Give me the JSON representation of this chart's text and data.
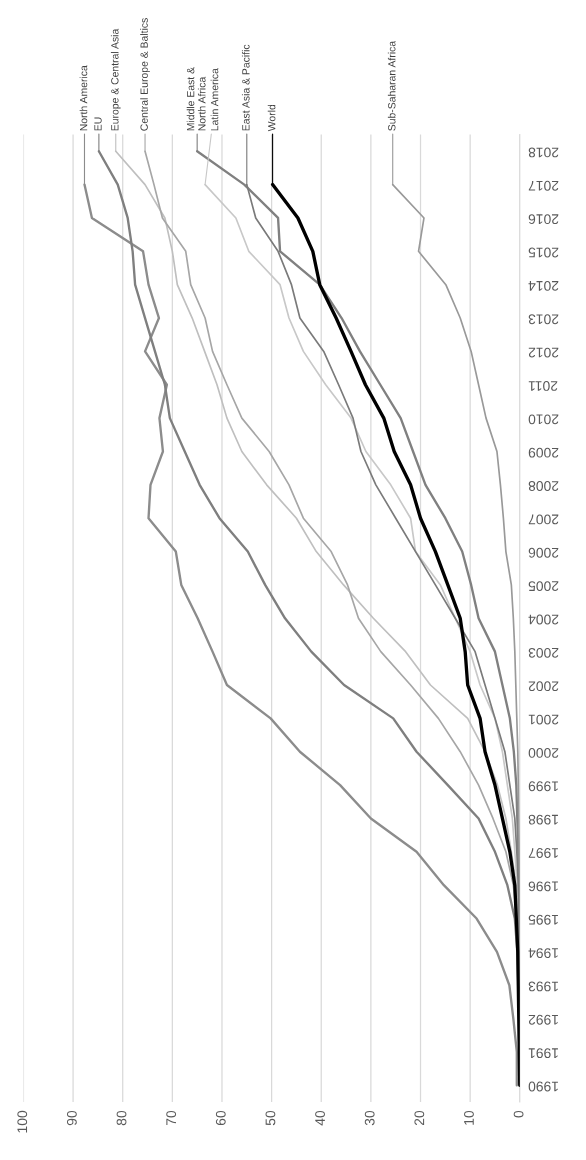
{
  "chart_data": {
    "type": "line",
    "xlim": [
      100,
      0
    ],
    "xticks": [
      0,
      10,
      20,
      30,
      40,
      50,
      60,
      70,
      80,
      90,
      100
    ],
    "ylim": [
      1989.5,
      2018.5
    ],
    "yticks": [
      1990,
      1991,
      1992,
      1993,
      1994,
      1995,
      1996,
      1997,
      1998,
      1999,
      2000,
      2001,
      2002,
      2003,
      2004,
      2005,
      2006,
      2007,
      2008,
      2009,
      2010,
      2011,
      2012,
      2013,
      2014,
      2015,
      2016,
      2017,
      2018
    ],
    "grid": "x",
    "series": [
      {
        "name": "North America",
        "color": "#8c8c8c",
        "x": [
          0.6,
          0.6,
          1.3,
          2.1,
          4.6,
          8.7,
          15.3,
          20.8,
          30,
          36.2,
          44.3,
          50.2,
          59,
          61.9,
          64.9,
          68.2,
          69.3,
          74.8,
          74.4,
          71.9,
          72.6,
          71.1,
          75.5,
          72.7,
          74.8,
          75.9,
          86.2,
          87.7
        ],
        "values": [
          1990,
          1991,
          1992,
          1993,
          1994,
          1995,
          1996,
          1997,
          1998,
          1999,
          2000,
          2001,
          2002,
          2003,
          2004,
          2005,
          2006,
          2007,
          2008,
          2009,
          2010,
          2011,
          2012,
          2013,
          2014,
          2015,
          2016,
          2017
        ]
      },
      {
        "name": "EU",
        "color": "#7f7f7f",
        "x": [
          0,
          0.1,
          0.2,
          0.3,
          0.5,
          1,
          2.5,
          5,
          8.3,
          14.5,
          20.8,
          25.5,
          35.4,
          42,
          47.3,
          51.3,
          54.8,
          60.5,
          64.5,
          67.5,
          70.5,
          71.5,
          73.5,
          75.5,
          77.5,
          78,
          79,
          81,
          84.8
        ],
        "values": [
          1990,
          1991,
          1992,
          1993,
          1994,
          1995,
          1996,
          1997,
          1998,
          1999,
          2000,
          2001,
          2002,
          2003,
          2004,
          2005,
          2006,
          2007,
          2008,
          2009,
          2010,
          2011,
          2012,
          2013,
          2014,
          2015,
          2016,
          2017,
          2018
        ]
      },
      {
        "name": "Europe & Central Asia",
        "color": "#bfbfbf",
        "x": [
          0,
          0,
          0.1,
          0.2,
          0.3,
          0.4,
          0.7,
          1.7,
          2.8,
          4.5,
          7,
          10.5,
          18,
          23,
          29.5,
          35.5,
          41,
          45,
          51,
          56,
          59,
          61,
          63.5,
          66,
          69,
          70,
          71.5,
          75.5,
          81.4
        ],
        "values": [
          1990,
          1991,
          1992,
          1993,
          1994,
          1995,
          1996,
          1997,
          1998,
          1999,
          2000,
          2001,
          2002,
          2003,
          2004,
          2005,
          2006,
          2007,
          2008,
          2009,
          2010,
          2011,
          2012,
          2013,
          2014,
          2015,
          2016,
          2017,
          2018
        ]
      },
      {
        "name": "Central Europe & Baltics",
        "color": "#a6a6a6",
        "x": [
          0,
          0,
          0.1,
          0.2,
          0.3,
          0.6,
          1.3,
          2.8,
          5.4,
          8.3,
          12,
          16.4,
          22,
          28,
          32.5,
          34.7,
          38,
          43.6,
          46.5,
          50.5,
          56,
          59,
          61.9,
          63.4,
          66.3,
          67.3,
          72,
          73.7,
          75.5
        ],
        "values": [
          1990,
          1991,
          1992,
          1993,
          1994,
          1995,
          1996,
          1997,
          1998,
          1999,
          2000,
          2001,
          2002,
          2003,
          2004,
          2005,
          2006,
          2007,
          2008,
          2009,
          2010,
          2011,
          2012,
          2013,
          2014,
          2015,
          2016,
          2017,
          2018
        ]
      },
      {
        "name": "Middle East &\nNorth Africa",
        "color": "#808080",
        "x": [
          0,
          0,
          0,
          0.1,
          0.1,
          0.2,
          0.2,
          0.3,
          0.5,
          0.7,
          1.2,
          2,
          3.5,
          5,
          8.3,
          9.8,
          11.6,
          15,
          19,
          21.5,
          24,
          28.1,
          32.2,
          35.9,
          40.3,
          48.3,
          48.7,
          55.5,
          65
        ],
        "values": [
          1990,
          1991,
          1992,
          1993,
          1994,
          1995,
          1996,
          1997,
          1998,
          1999,
          2000,
          2001,
          2002,
          2003,
          2004,
          2005,
          2006,
          2007,
          2008,
          2009,
          2010,
          2011,
          2012,
          2013,
          2014,
          2015,
          2016,
          2017,
          2018
        ]
      },
      {
        "name": "Latin America",
        "color": "#c8c8c8",
        "x": [
          0,
          0,
          0,
          0,
          0.1,
          0.3,
          0.5,
          1,
          1.5,
          2.5,
          3.5,
          5,
          8,
          10,
          13,
          16,
          21,
          22,
          26,
          31,
          34,
          39.1,
          43.6,
          46.5,
          48.3,
          54.6,
          57.2,
          63.4
        ],
        "values": [
          1990,
          1991,
          1992,
          1993,
          1994,
          1995,
          1996,
          1997,
          1998,
          1999,
          2000,
          2001,
          2002,
          2003,
          2004,
          2005,
          2006,
          2007,
          2008,
          2009,
          2010,
          2011,
          2012,
          2013,
          2014,
          2015,
          2016,
          2017
        ]
      },
      {
        "name": "East Asia & Pacific",
        "color": "#7a7a7a",
        "x": [
          0,
          0,
          0,
          0,
          0.1,
          0.2,
          0.3,
          0.6,
          1,
          2,
          3,
          5,
          7,
          9,
          13,
          17,
          21,
          25,
          29,
          32,
          33.6,
          36.5,
          39.5,
          44.3,
          46,
          48.7,
          53.2,
          55
        ],
        "values": [
          1990,
          1991,
          1992,
          1993,
          1994,
          1995,
          1996,
          1997,
          1998,
          1999,
          2000,
          2001,
          2002,
          2003,
          2004,
          2005,
          2006,
          2007,
          2008,
          2009,
          2010,
          2011,
          2012,
          2013,
          2014,
          2015,
          2016,
          2017
        ]
      },
      {
        "name": "World",
        "color": "#000000",
        "x": [
          0,
          0.1,
          0.2,
          0.3,
          0.4,
          0.7,
          1,
          2,
          3.5,
          5,
          7,
          8,
          10.5,
          11,
          12,
          14.5,
          17,
          20,
          22,
          25.3,
          27.4,
          31.1,
          34,
          37,
          40.3,
          41.7,
          44.7,
          49.8
        ],
        "values": [
          1990,
          1991,
          1992,
          1993,
          1994,
          1995,
          1996,
          1997,
          1998,
          1999,
          2000,
          2001,
          2002,
          2003,
          2004,
          2005,
          2006,
          2007,
          2008,
          2009,
          2010,
          2011,
          2012,
          2013,
          2014,
          2015,
          2016,
          2017
        ]
      },
      {
        "name": "Sub-Saharan Africa",
        "color": "#999999",
        "x": [
          0,
          0,
          0,
          0,
          0,
          0,
          0,
          0.1,
          0.2,
          0.3,
          0.4,
          0.6,
          0.8,
          1,
          1.3,
          1.7,
          2.8,
          3.3,
          3.9,
          4.6,
          6.8,
          8.3,
          9.8,
          12,
          14.9,
          20.4,
          19.3,
          25.6
        ],
        "values": [
          1990,
          1991,
          1992,
          1993,
          1994,
          1995,
          1996,
          1997,
          1998,
          1999,
          2000,
          2001,
          2002,
          2003,
          2004,
          2005,
          2006,
          2007,
          2008,
          2009,
          2010,
          2011,
          2012,
          2013,
          2014,
          2015,
          2016,
          2017
        ]
      }
    ]
  }
}
